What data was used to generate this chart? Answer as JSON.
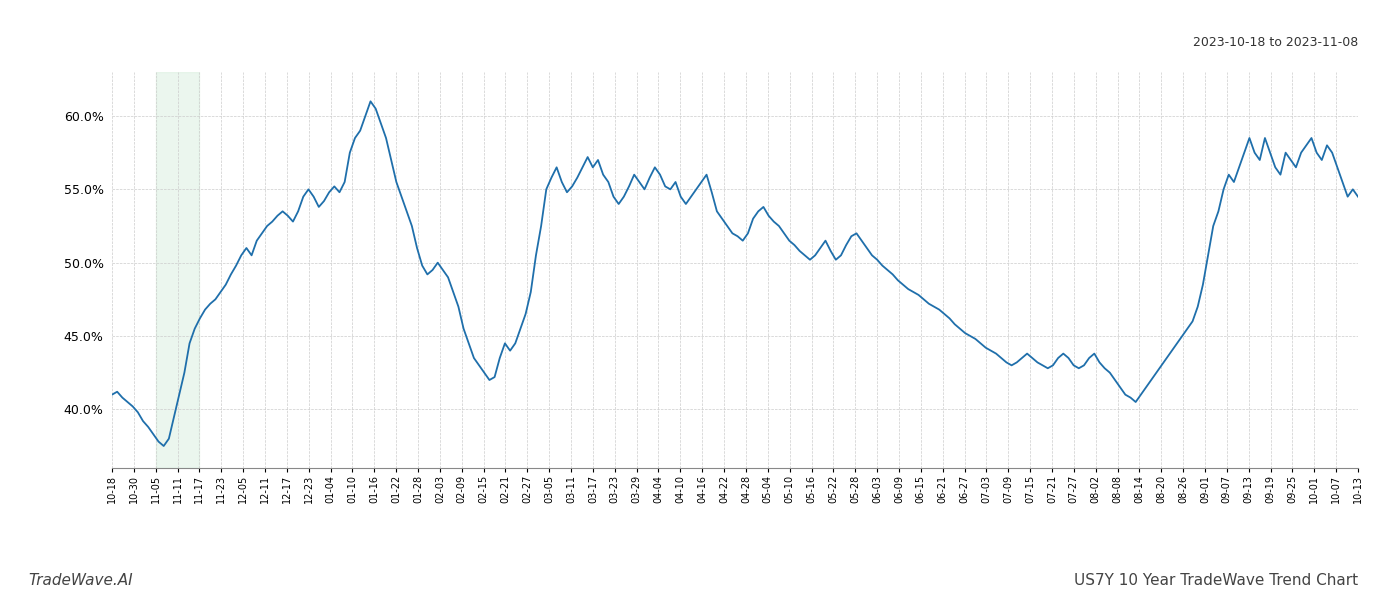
{
  "title_top_right": "2023-10-18 to 2023-11-08",
  "title_bottom_left": "TradeWave.AI",
  "title_bottom_right": "US7Y 10 Year TradeWave Trend Chart",
  "line_color": "#1f6fab",
  "background_color": "#ffffff",
  "grid_color": "#cccccc",
  "highlight_color": "#d4edda",
  "highlight_alpha": 0.45,
  "x_labels": [
    "10-18",
    "10-30",
    "11-05",
    "11-11",
    "11-17",
    "11-23",
    "12-05",
    "12-11",
    "12-17",
    "12-23",
    "01-04",
    "01-10",
    "01-16",
    "01-22",
    "01-28",
    "02-03",
    "02-09",
    "02-15",
    "02-21",
    "02-27",
    "03-05",
    "03-11",
    "03-17",
    "03-23",
    "03-29",
    "04-04",
    "04-10",
    "04-16",
    "04-22",
    "04-28",
    "05-04",
    "05-10",
    "05-16",
    "05-22",
    "05-28",
    "06-03",
    "06-09",
    "06-15",
    "06-21",
    "06-27",
    "07-03",
    "07-09",
    "07-15",
    "07-21",
    "07-27",
    "08-02",
    "08-08",
    "08-14",
    "08-20",
    "08-26",
    "09-01",
    "09-07",
    "09-13",
    "09-19",
    "09-25",
    "10-01",
    "10-07",
    "10-13"
  ],
  "y_values": [
    41.0,
    41.2,
    40.8,
    40.5,
    40.2,
    39.8,
    39.2,
    38.8,
    38.3,
    37.8,
    37.5,
    38.0,
    39.5,
    41.0,
    42.5,
    44.5,
    45.5,
    46.2,
    46.8,
    47.2,
    47.5,
    48.0,
    48.5,
    49.2,
    49.8,
    50.5,
    51.0,
    50.5,
    51.5,
    52.0,
    52.5,
    52.8,
    53.2,
    53.5,
    53.2,
    52.8,
    53.5,
    54.5,
    55.0,
    54.5,
    53.8,
    54.2,
    54.8,
    55.2,
    54.8,
    55.5,
    57.5,
    58.5,
    59.0,
    60.0,
    61.0,
    60.5,
    59.5,
    58.5,
    57.0,
    55.5,
    54.5,
    53.5,
    52.5,
    51.0,
    49.8,
    49.2,
    49.5,
    50.0,
    49.5,
    49.0,
    48.0,
    47.0,
    45.5,
    44.5,
    43.5,
    43.0,
    42.5,
    42.0,
    42.2,
    43.5,
    44.5,
    44.0,
    44.5,
    45.5,
    46.5,
    48.0,
    50.5,
    52.5,
    55.0,
    55.8,
    56.5,
    55.5,
    54.8,
    55.2,
    55.8,
    56.5,
    57.2,
    56.5,
    57.0,
    56.0,
    55.5,
    54.5,
    54.0,
    54.5,
    55.2,
    56.0,
    55.5,
    55.0,
    55.8,
    56.5,
    56.0,
    55.2,
    55.0,
    55.5,
    54.5,
    54.0,
    54.5,
    55.0,
    55.5,
    56.0,
    54.8,
    53.5,
    53.0,
    52.5,
    52.0,
    51.8,
    51.5,
    52.0,
    53.0,
    53.5,
    53.8,
    53.2,
    52.8,
    52.5,
    52.0,
    51.5,
    51.2,
    50.8,
    50.5,
    50.2,
    50.5,
    51.0,
    51.5,
    50.8,
    50.2,
    50.5,
    51.2,
    51.8,
    52.0,
    51.5,
    51.0,
    50.5,
    50.2,
    49.8,
    49.5,
    49.2,
    48.8,
    48.5,
    48.2,
    48.0,
    47.8,
    47.5,
    47.2,
    47.0,
    46.8,
    46.5,
    46.2,
    45.8,
    45.5,
    45.2,
    45.0,
    44.8,
    44.5,
    44.2,
    44.0,
    43.8,
    43.5,
    43.2,
    43.0,
    43.2,
    43.5,
    43.8,
    43.5,
    43.2,
    43.0,
    42.8,
    43.0,
    43.5,
    43.8,
    43.5,
    43.0,
    42.8,
    43.0,
    43.5,
    43.8,
    43.2,
    42.8,
    42.5,
    42.0,
    41.5,
    41.0,
    40.8,
    40.5,
    41.0,
    41.5,
    42.0,
    42.5,
    43.0,
    43.5,
    44.0,
    44.5,
    45.0,
    45.5,
    46.0,
    47.0,
    48.5,
    50.5,
    52.5,
    53.5,
    55.0,
    56.0,
    55.5,
    56.5,
    57.5,
    58.5,
    57.5,
    57.0,
    58.5,
    57.5,
    56.5,
    56.0,
    57.5,
    57.0,
    56.5,
    57.5,
    58.0,
    58.5,
    57.5,
    57.0,
    58.0,
    57.5,
    56.5,
    55.5,
    54.5,
    55.0,
    54.5
  ],
  "ylim": [
    36.0,
    63.0
  ],
  "yticks": [
    40.0,
    45.0,
    50.0,
    55.0,
    60.0
  ],
  "highlight_x_start_label": "11-05",
  "highlight_x_end_label": "11-17",
  "line_width": 1.3
}
